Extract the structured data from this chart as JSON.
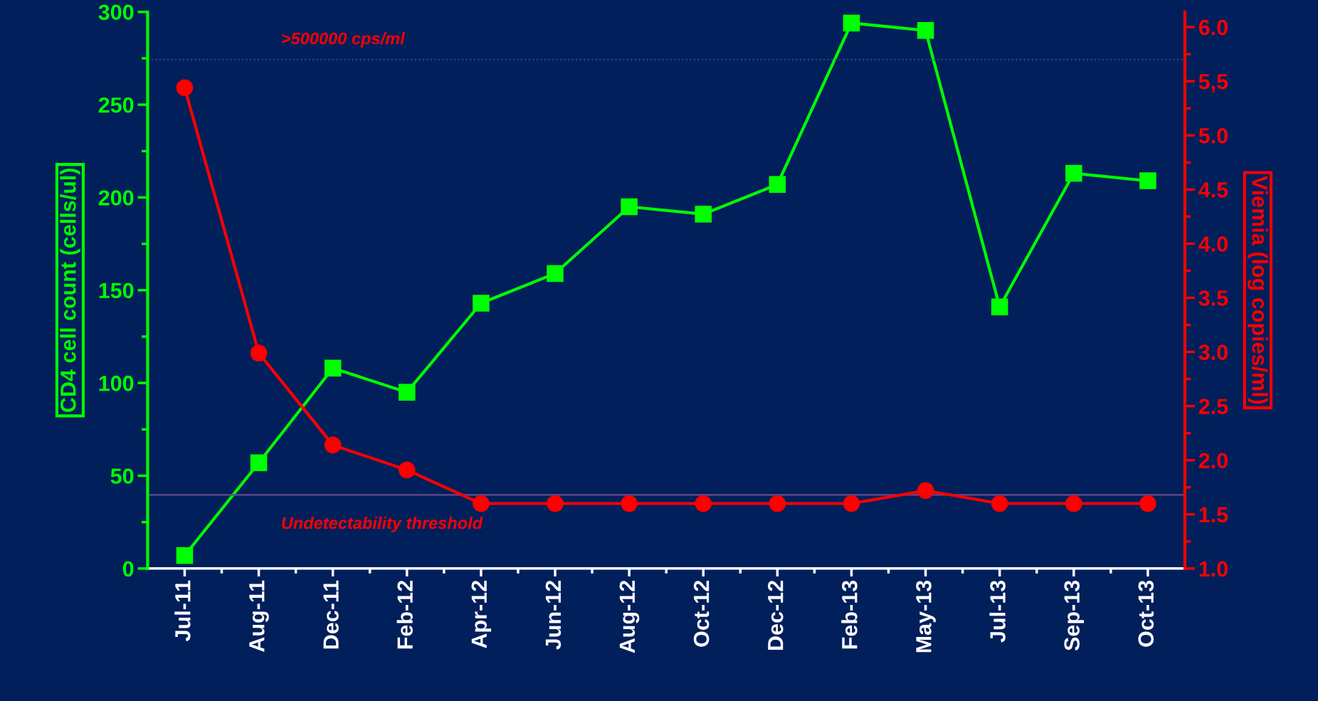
{
  "chart_data": {
    "type": "line",
    "xlabel": null,
    "ylabel": "CD4 cell count (cells/ul)",
    "y2label": "Viemia (log copies/ml)",
    "categories": [
      "Jul-11",
      "Aug-11",
      "Dec-11",
      "Feb-12",
      "Apr-12",
      "Jun-12",
      "Aug-12",
      "Oct-12",
      "Dec-12",
      "Feb-13",
      "May-13",
      "Jul-13",
      "Sep-13",
      "Oct-13"
    ],
    "series": [
      {
        "color": "#00ff00",
        "marker": "square",
        "values": [
          7,
          57,
          108,
          95,
          143,
          159,
          195,
          191,
          207,
          294,
          290,
          141,
          213,
          209
        ]
      },
      {
        "color": "#ff0000",
        "marker": "circle",
        "axis": "y2",
        "values": [
          5.44,
          2.99,
          2.14,
          1.91,
          1.6,
          1.6,
          1.6,
          1.6,
          1.6,
          1.6,
          1.72,
          1.6,
          1.6,
          1.6
        ]
      }
    ],
    "ylim": [
      0,
      300
    ],
    "yticks": [
      0,
      50,
      100,
      150,
      200,
      250,
      300
    ],
    "y2lim": [
      1.0,
      6.14
    ],
    "y2ticks": [
      {
        "value": 1.0,
        "label": "1.0"
      },
      1.5,
      {
        "value": 2.0,
        "label": "2.0"
      },
      2.5,
      {
        "value": 3.0,
        "label": "3.0"
      },
      3.5,
      {
        "value": 4.0,
        "label": "4.0"
      },
      4.5,
      {
        "value": 5.0,
        "label": "5.0"
      },
      {
        "value": 5.5,
        "label": "5,5"
      },
      {
        "value": 6.0,
        "label": "6.0"
      }
    ],
    "ref_lines": [
      {
        "axis": "y2",
        "value": 5.7,
        "label": ">500000 cps/ml",
        "color": "#3b4a9a",
        "line_style": "dotted"
      },
      {
        "axis": "y2",
        "value": 1.68,
        "label": "Undetectability threshold",
        "color": "#6a4a8a",
        "line_style": "solid"
      }
    ],
    "grid": false,
    "legend": false
  }
}
